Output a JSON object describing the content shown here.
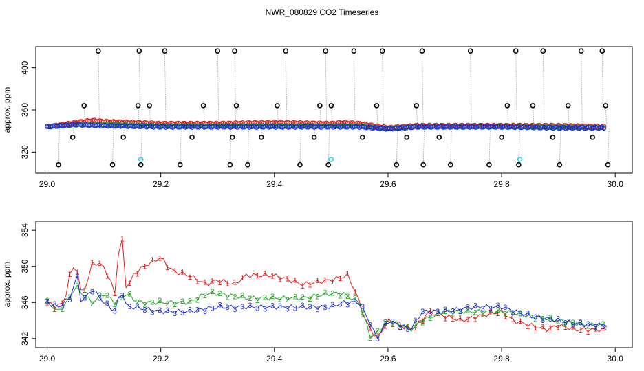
{
  "figure": {
    "title": "NWR_080829  CO2 Timeseries"
  },
  "colors": {
    "series1": "#e31a1c",
    "series2": "#1fa31f",
    "series3": "#1e2fd4",
    "flask": "#000000",
    "cyan": "#36d6e0",
    "connector": "#9a9a9a"
  },
  "chart_data": [
    {
      "type": "scatter",
      "ylabel": "approx. ppm",
      "xlim": [
        28.98,
        30.03
      ],
      "ylim": [
        300,
        420
      ],
      "xticks": [
        "29.0",
        "29.2",
        "29.4",
        "29.6",
        "29.8",
        "30.0"
      ],
      "xtick_values": [
        29.0,
        29.2,
        29.4,
        29.6,
        29.8,
        30.0
      ],
      "yticks": [
        "320",
        "360",
        "400"
      ],
      "ytick_values": [
        320,
        360,
        400
      ],
      "series": [
        {
          "x": [
            29.0,
            29.05,
            29.08,
            29.1,
            29.15,
            29.2,
            29.3,
            29.4,
            29.5,
            29.52,
            29.55,
            29.6,
            29.65,
            29.7,
            29.8,
            29.9,
            29.98
          ],
          "y": [
            344,
            348,
            350,
            349,
            348,
            347,
            347,
            348,
            347,
            348,
            347,
            343,
            345,
            345,
            345,
            345,
            344
          ]
        },
        {
          "x": [
            29.0,
            29.05,
            29.1,
            29.2,
            29.3,
            29.4,
            29.5,
            29.55,
            29.6,
            29.65,
            29.7,
            29.8,
            29.9,
            29.98
          ],
          "y": [
            344,
            346,
            346,
            345,
            345,
            345,
            345,
            345,
            342,
            344,
            344,
            344,
            344,
            343
          ]
        },
        {
          "x": [
            29.0,
            29.05,
            29.1,
            29.2,
            29.3,
            29.4,
            29.5,
            29.55,
            29.6,
            29.65,
            29.7,
            29.8,
            29.9,
            29.98
          ],
          "y": [
            344,
            346,
            345,
            344,
            344,
            344,
            344,
            344,
            342,
            344,
            344,
            344,
            343,
            343
          ]
        }
      ],
      "flask_points": {
        "x": [
          29.02,
          29.045,
          29.065,
          29.09,
          29.115,
          29.134,
          29.16,
          29.162,
          29.165,
          29.18,
          29.207,
          29.234,
          29.255,
          29.275,
          29.3,
          29.322,
          29.326,
          29.33,
          29.333,
          29.353,
          29.377,
          29.405,
          29.42,
          29.445,
          29.47,
          29.48,
          29.49,
          29.495,
          29.5,
          29.54,
          29.555,
          29.58,
          29.59,
          29.615,
          29.633,
          29.65,
          29.66,
          29.662,
          29.69,
          29.71,
          29.745,
          29.778,
          29.8,
          29.81,
          29.825,
          29.83,
          29.855,
          29.873,
          29.89,
          29.902,
          29.917,
          29.94,
          29.96,
          29.977,
          29.983,
          29.987
        ],
        "y": [
          308,
          334,
          364,
          416,
          308,
          334,
          364,
          416,
          308,
          364,
          416,
          308,
          334,
          364,
          416,
          308,
          334,
          416,
          364,
          308,
          334,
          364,
          416,
          308,
          334,
          364,
          416,
          308,
          364,
          416,
          334,
          364,
          416,
          308,
          334,
          364,
          416,
          308,
          334,
          308,
          416,
          308,
          334,
          364,
          416,
          308,
          364,
          416,
          334,
          308,
          364,
          416,
          334,
          416,
          364,
          308
        ]
      },
      "cyan_points": {
        "x": [
          29.165,
          29.5,
          29.832
        ],
        "y": [
          313,
          313,
          313
        ]
      }
    },
    {
      "type": "line",
      "ylabel": "approx. ppm",
      "xlim": [
        28.98,
        30.03
      ],
      "ylim": [
        341,
        355
      ],
      "xticks": [
        "29.0",
        "29.2",
        "29.4",
        "29.6",
        "29.8",
        "30.0"
      ],
      "xtick_values": [
        29.0,
        29.2,
        29.4,
        29.6,
        29.8,
        30.0
      ],
      "yticks": [
        "342",
        "346",
        "350",
        "354"
      ],
      "ytick_values": [
        342,
        346,
        350,
        354
      ],
      "series": [
        {
          "x": [
            29.0,
            29.015,
            29.03,
            29.04,
            29.05,
            29.06,
            29.07,
            29.08,
            29.1,
            29.12,
            29.125,
            29.13,
            29.14,
            29.15,
            29.17,
            29.2,
            29.22,
            29.25,
            29.28,
            29.3,
            29.33,
            29.35,
            29.4,
            29.45,
            29.5,
            29.53,
            29.55,
            29.56,
            29.57,
            29.58,
            29.6,
            29.62,
            29.64,
            29.66,
            29.67,
            29.7,
            29.73,
            29.76,
            29.8,
            29.82,
            29.85,
            29.88,
            29.9,
            29.93,
            29.96,
            29.985
          ],
          "y": [
            346,
            345.5,
            346,
            349,
            350.5,
            347,
            348,
            350.5,
            350,
            347,
            351,
            354.5,
            347,
            349,
            350,
            351,
            349.5,
            349,
            348,
            348.5,
            348,
            349,
            349,
            348,
            348.5,
            349,
            346,
            344,
            343,
            342,
            344,
            343.5,
            343,
            344,
            345,
            344.5,
            344,
            344.5,
            345,
            344,
            343.5,
            343,
            343.5,
            343,
            343,
            343
          ]
        },
        {
          "x": [
            29.0,
            29.02,
            29.04,
            29.05,
            29.06,
            29.08,
            29.1,
            29.12,
            29.14,
            29.16,
            29.2,
            29.25,
            29.28,
            29.3,
            29.35,
            29.4,
            29.45,
            29.5,
            29.52,
            29.55,
            29.57,
            29.6,
            29.62,
            29.64,
            29.66,
            29.7,
            29.75,
            29.8,
            29.85,
            29.9,
            29.95,
            29.985
          ],
          "y": [
            346,
            345,
            346.5,
            348,
            347,
            346,
            347,
            346,
            347,
            346,
            346,
            346,
            347,
            347,
            346.5,
            346.5,
            346.5,
            347,
            347,
            346,
            342,
            344,
            343.5,
            343,
            344,
            345,
            345,
            345,
            344.5,
            344,
            343.5,
            343.5
          ]
        },
        {
          "x": [
            29.0,
            29.02,
            29.04,
            29.05,
            29.055,
            29.06,
            29.08,
            29.1,
            29.12,
            29.13,
            29.14,
            29.15,
            29.2,
            29.25,
            29.3,
            29.35,
            29.4,
            29.45,
            29.5,
            29.52,
            29.55,
            29.57,
            29.58,
            29.6,
            29.62,
            29.64,
            29.66,
            29.7,
            29.75,
            29.8,
            29.85,
            29.9,
            29.95,
            29.985
          ],
          "y": [
            346,
            345.5,
            346.5,
            348.5,
            349,
            346,
            347.5,
            346,
            345,
            347.5,
            345.5,
            345.5,
            345,
            345,
            345.5,
            345.5,
            345.5,
            345.5,
            345.5,
            346,
            346,
            343.5,
            342,
            344,
            343.5,
            343,
            345,
            345,
            345.5,
            345.5,
            344.5,
            344,
            343.5,
            343.5
          ]
        }
      ],
      "series_markers": [
        "1",
        "2",
        "3"
      ]
    }
  ]
}
